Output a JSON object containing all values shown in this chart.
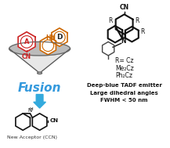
{
  "bg_color": "#ffffff",
  "acceptor_color": "#cc2222",
  "donor_color": "#cc6600",
  "fusion_color": "#3399dd",
  "arrow_color": "#33aadd",
  "mol_color": "#111111",
  "text_R_eq": "R= Cz",
  "text_Me2Cz": "Me₂Cz",
  "text_Ph2Cz": "Ph₂Cz",
  "text_line1": "Deep-blue TADF emitter",
  "text_line2": "Large dihedral angles",
  "text_line3": "FWHM < 50 nm",
  "label_new_acceptor": "New Acceptor (CCN)"
}
